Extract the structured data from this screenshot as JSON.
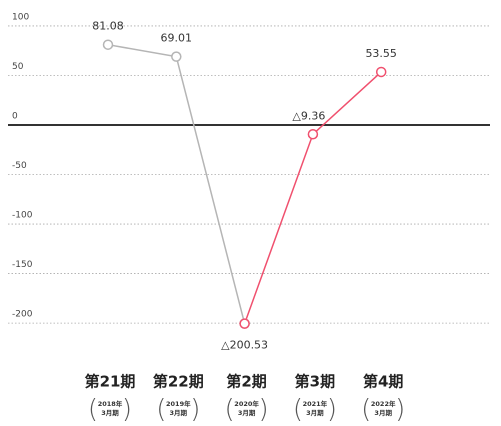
{
  "chart_data": {
    "type": "line",
    "categories": [
      "第21期",
      "第22期",
      "第2期",
      "第3期",
      "第4期"
    ],
    "subcategories": [
      [
        "2018年",
        "3月期"
      ],
      [
        "2019年",
        "3月期"
      ],
      [
        "2020年",
        "3月期"
      ],
      [
        "2021年",
        "3月期"
      ],
      [
        "2022年",
        "3月期"
      ]
    ],
    "series": [
      {
        "color": "#b5b5b5",
        "values": [
          81.08,
          69.01,
          -200.53,
          null,
          null
        ],
        "value_labels": [
          "81.08",
          "69.01",
          null,
          null,
          null
        ]
      },
      {
        "color": "#f0506e",
        "values": [
          null,
          null,
          -200.53,
          -9.36,
          53.55
        ],
        "value_labels": [
          null,
          null,
          "△200.53",
          "△9.36",
          "53.55"
        ]
      }
    ],
    "ylim": [
      -210,
      105
    ],
    "yticks": [
      100,
      50,
      0,
      -50,
      -100,
      -150,
      -200
    ],
    "grid": true
  }
}
